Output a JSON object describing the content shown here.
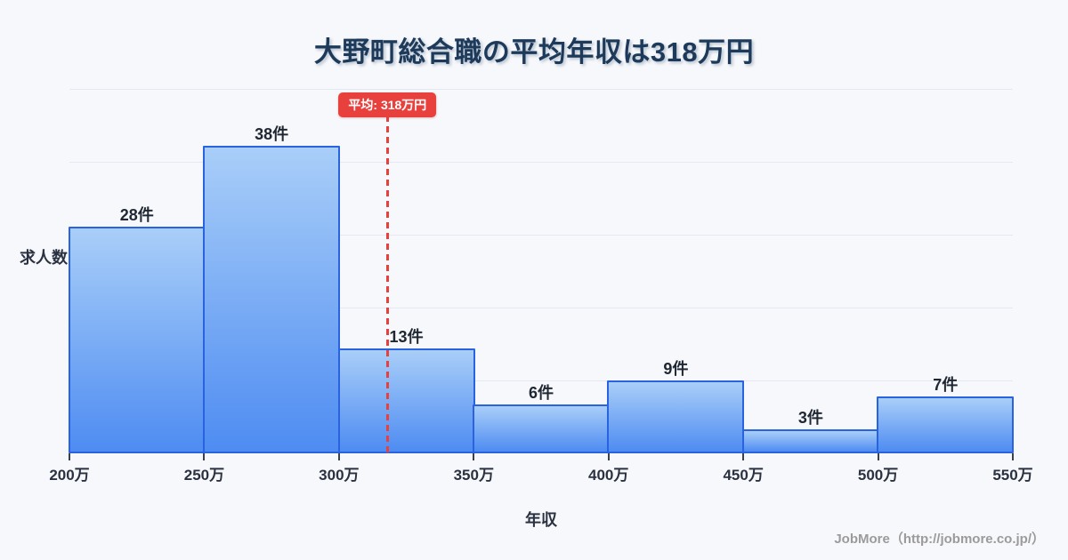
{
  "chart_data": {
    "type": "bar",
    "title": "大野町総合職の平均年収は318万円",
    "xlabel": "年収",
    "ylabel": "求人数",
    "unit": "件",
    "categories": [
      "200万-250万",
      "250万-300万",
      "300万-350万",
      "350万-400万",
      "400万-450万",
      "450万-500万",
      "500万-550万"
    ],
    "values": [
      28,
      38,
      13,
      6,
      9,
      3,
      7
    ],
    "x_ticks": [
      "200万",
      "250万",
      "300万",
      "350万",
      "400万",
      "450万",
      "500万",
      "550万"
    ],
    "xlim": [
      200,
      550
    ],
    "ylim": [
      0,
      45
    ],
    "grid": true,
    "legend": false,
    "average_line": {
      "value": 318,
      "label": "平均: 318万円",
      "style": "dashed"
    },
    "colors": {
      "background": "#f7f8fb",
      "bar_gradient_top": "#a9cef8",
      "bar_gradient_bottom": "#4e8cf2",
      "bar_border": "#2a63df",
      "average_red": "#e8413d",
      "grid_line": "#e3e8f2",
      "title_text": "#1d3a5a",
      "axis_text": "#2a3140",
      "footer_text": "#9b9b9b"
    }
  },
  "footer": {
    "credit": "JobMore（http://jobmore.co.jp/）"
  }
}
